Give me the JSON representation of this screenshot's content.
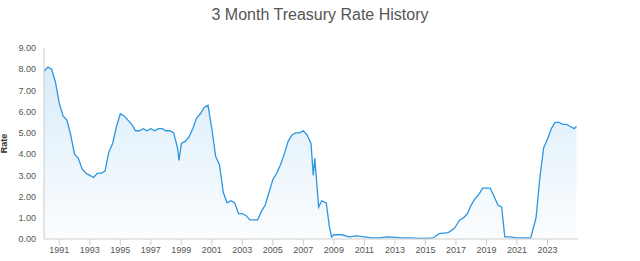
{
  "chart_data": {
    "type": "area",
    "title": "3 Month Treasury Rate History",
    "y_label": "Rate",
    "color": "#2e95e0",
    "grid": false,
    "xlim": [
      1990,
      2025
    ],
    "xticks": [
      1991,
      1993,
      1995,
      1997,
      1999,
      2001,
      2003,
      2005,
      2007,
      2009,
      2011,
      2013,
      2015,
      2017,
      2019,
      2021,
      2023
    ],
    "ylim": [
      0,
      9
    ],
    "yticks": [
      {
        "value": 0,
        "label": "0.00"
      },
      {
        "value": 1,
        "label": "1.00"
      },
      {
        "value": 2,
        "label": "2.00"
      },
      {
        "value": 3,
        "label": "3.00"
      },
      {
        "value": 4,
        "label": "4.00"
      },
      {
        "value": 5,
        "label": "5.00"
      },
      {
        "value": 6,
        "label": "6.00"
      },
      {
        "value": 7,
        "label": "7.00"
      },
      {
        "value": 8,
        "label": "8.00"
      },
      {
        "value": 9,
        "label": "9.00"
      }
    ],
    "x": [
      1990,
      1990.25,
      1990.5,
      1990.75,
      1991,
      1991.25,
      1991.5,
      1991.75,
      1992,
      1992.25,
      1992.5,
      1992.75,
      1993,
      1993.25,
      1993.5,
      1993.75,
      1994,
      1994.25,
      1994.5,
      1994.75,
      1995,
      1995.25,
      1995.5,
      1995.75,
      1996,
      1996.25,
      1996.5,
      1996.75,
      1997,
      1997.25,
      1997.5,
      1997.75,
      1998,
      1998.25,
      1998.5,
      1998.75,
      1998.85,
      1999,
      1999.25,
      1999.5,
      1999.75,
      2000,
      2000.25,
      2000.5,
      2000.75,
      2001,
      2001.25,
      2001.5,
      2001.75,
      2002,
      2002.25,
      2002.5,
      2002.75,
      2003,
      2003.25,
      2003.5,
      2003.75,
      2004,
      2004.25,
      2004.5,
      2004.75,
      2005,
      2005.25,
      2005.5,
      2005.75,
      2006,
      2006.25,
      2006.5,
      2006.75,
      2007,
      2007.25,
      2007.5,
      2007.65,
      2007.75,
      2008,
      2008.2,
      2008.5,
      2008.7,
      2008.85,
      2009,
      2009.5,
      2010,
      2010.5,
      2011,
      2011.5,
      2012,
      2012.5,
      2013,
      2013.5,
      2014,
      2014.5,
      2015,
      2015.5,
      2015.9,
      2016.5,
      2016.9,
      2017.25,
      2017.5,
      2017.75,
      2018,
      2018.25,
      2018.5,
      2018.75,
      2019,
      2019.25,
      2019.5,
      2019.75,
      2020,
      2020.2,
      2020.5,
      2021,
      2021.5,
      2021.9,
      2022.25,
      2022.5,
      2022.75,
      2023,
      2023.25,
      2023.5,
      2023.75,
      2024,
      2024.25,
      2024.5,
      2024.75,
      2024.9
    ],
    "values": [
      7.9,
      8.1,
      8.0,
      7.4,
      6.4,
      5.8,
      5.6,
      4.9,
      4.0,
      3.8,
      3.3,
      3.1,
      3.0,
      2.9,
      3.1,
      3.1,
      3.2,
      4.1,
      4.5,
      5.3,
      5.9,
      5.8,
      5.6,
      5.4,
      5.1,
      5.1,
      5.2,
      5.1,
      5.2,
      5.1,
      5.2,
      5.2,
      5.1,
      5.1,
      5.0,
      4.3,
      3.7,
      4.5,
      4.6,
      4.8,
      5.2,
      5.7,
      5.9,
      6.2,
      6.3,
      5.2,
      3.9,
      3.5,
      2.2,
      1.7,
      1.8,
      1.7,
      1.2,
      1.2,
      1.1,
      0.9,
      0.9,
      0.9,
      1.3,
      1.6,
      2.2,
      2.8,
      3.1,
      3.5,
      4.0,
      4.6,
      4.9,
      5.0,
      5.0,
      5.1,
      4.9,
      4.5,
      3.0,
      3.8,
      1.5,
      1.8,
      1.7,
      0.6,
      0.1,
      0.2,
      0.2,
      0.1,
      0.15,
      0.1,
      0.05,
      0.05,
      0.1,
      0.08,
      0.05,
      0.05,
      0.03,
      0.03,
      0.05,
      0.25,
      0.3,
      0.5,
      0.9,
      1.0,
      1.2,
      1.6,
      1.9,
      2.1,
      2.4,
      2.4,
      2.4,
      2.0,
      1.6,
      1.5,
      0.1,
      0.1,
      0.05,
      0.05,
      0.05,
      1.0,
      2.9,
      4.3,
      4.7,
      5.2,
      5.5,
      5.5,
      5.4,
      5.4,
      5.3,
      5.2,
      5.3
    ]
  }
}
